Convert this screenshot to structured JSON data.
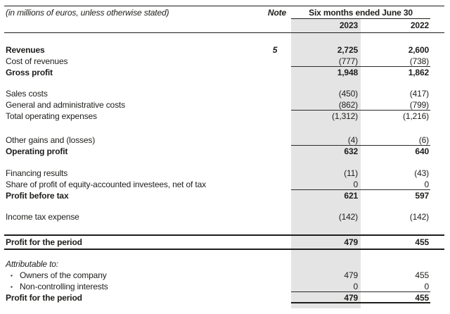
{
  "document": {
    "units_note": "(in millions of euros, unless otherwise stated)",
    "note_header": "Note",
    "period_header": "Six months ended June 30",
    "year_columns": [
      "2023",
      "2022"
    ]
  },
  "colors": {
    "highlight_column": "#e4e4e4",
    "text": "#1d1d1b",
    "rule": "#2a2a2a"
  },
  "table": {
    "rows": [
      {
        "label": "Revenues",
        "note": "5",
        "v2023": "2,725",
        "v2022": "2,600",
        "bold": true,
        "gap": 16
      },
      {
        "label": "Cost of revenues",
        "v2023": "(777)",
        "v2022": "(738)",
        "rule_below": true
      },
      {
        "label": "Gross profit",
        "v2023": "1,948",
        "v2022": "1,862",
        "bold": true
      },
      {
        "label": "Sales costs",
        "v2023": "(450)",
        "v2022": "(417)",
        "gap": 14
      },
      {
        "label": "General and administrative costs",
        "v2023": "(862)",
        "v2022": "(799)",
        "rule_below": true
      },
      {
        "label": "Total operating expenses",
        "v2023": "(1,312)",
        "v2022": "(1,216)"
      },
      {
        "label": "Other gains and (losses)",
        "v2023": "(4)",
        "v2022": "(6)",
        "gap": 18,
        "rule_below": true
      },
      {
        "label": "Operating profit",
        "v2023": "632",
        "v2022": "640",
        "bold": true
      },
      {
        "label": "Financing results",
        "v2023": "(11)",
        "v2022": "(43)",
        "gap": 15
      },
      {
        "label": "Share of profit of equity-accounted investees, net of tax",
        "v2023": "0",
        "v2022": "0",
        "rule_below": true
      },
      {
        "label": "Profit before tax",
        "v2023": "621",
        "v2022": "597",
        "bold": true
      },
      {
        "label": "Income tax expense",
        "v2023": "(142)",
        "v2022": "(142)",
        "gap": 14
      },
      {
        "label": "Profit for the period",
        "v2023": "479",
        "v2022": "455",
        "bold": true,
        "grand": true,
        "gap": 17
      },
      {
        "label": "Attributable to:",
        "italic": true,
        "gap": 12
      },
      {
        "label": "Owners of the company",
        "v2023": "479",
        "v2022": "455",
        "bullet": true
      },
      {
        "label": "Non-controlling interests",
        "v2023": "0",
        "v2022": "0",
        "bullet": true,
        "rule_below": true
      },
      {
        "label": "Profit for the period",
        "v2023": "479",
        "v2022": "455",
        "bold": true,
        "end_rule": true
      }
    ]
  }
}
